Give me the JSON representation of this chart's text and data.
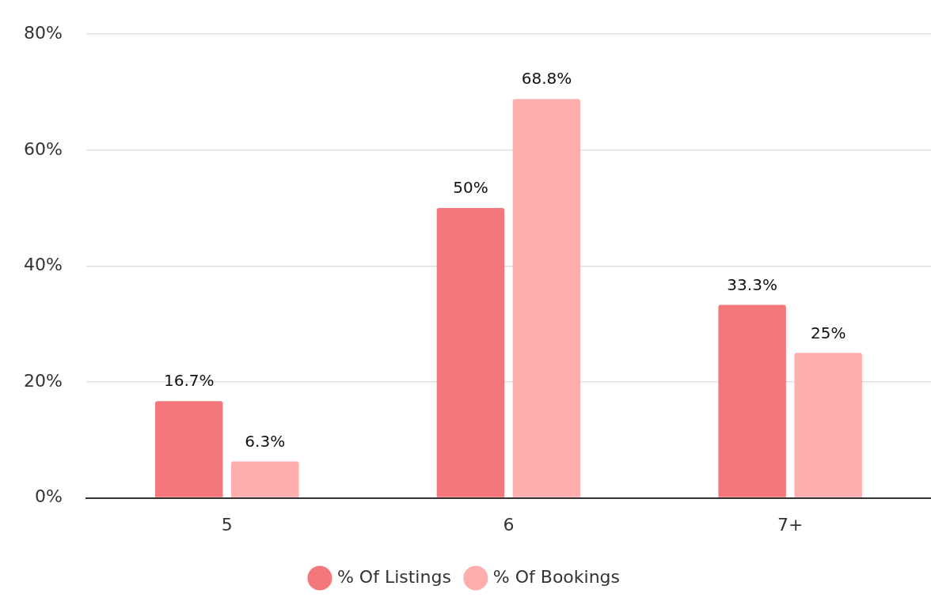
{
  "chart_data": {
    "type": "bar",
    "categories": [
      "5",
      "6",
      "7+"
    ],
    "series": [
      {
        "name": "% Of Listings",
        "color": "#f4787b",
        "values": [
          16.7,
          50,
          33.3
        ],
        "value_labels": [
          "16.7%",
          "50%",
          "33.3%"
        ]
      },
      {
        "name": "% Of Bookings",
        "color": "#ffaeae",
        "values": [
          6.3,
          68.8,
          25
        ],
        "value_labels": [
          "6.3%",
          "68.8%",
          "25%"
        ]
      }
    ],
    "ylim": [
      0,
      80
    ],
    "yticks": [
      {
        "value": 0,
        "label": "0%"
      },
      {
        "value": 20,
        "label": "20%"
      },
      {
        "value": 40,
        "label": "40%"
      },
      {
        "value": 60,
        "label": "60%"
      },
      {
        "value": 80,
        "label": "80%"
      }
    ],
    "grid": "y",
    "legend": "bottom"
  }
}
